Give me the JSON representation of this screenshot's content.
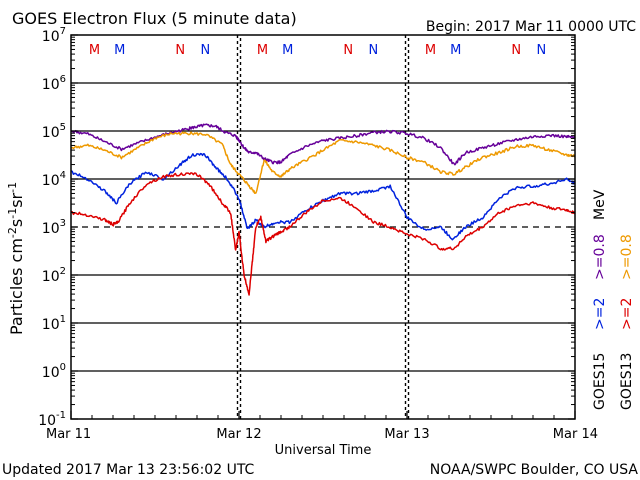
{
  "header": {
    "title": "GOES Electron Flux (5 minute data)",
    "begin": "Begin: 2017 Mar 11 0000 UTC"
  },
  "footer": {
    "updated": "Updated 2017 Mar 13 23:56:02 UTC",
    "credit": "NOAA/SWPC Boulder, CO USA"
  },
  "colors": {
    "red": "#dd0000",
    "blue": "#0022dd",
    "purple": "#660099",
    "orange": "#ee9900",
    "black": "#000000"
  },
  "chart_data": {
    "type": "line",
    "title": "GOES Electron Flux (5 minute data)",
    "xlabel": "Universal Time",
    "ylabel": "Particles cm^-2 s^-1 sr^-1",
    "xlim_days": [
      0,
      3
    ],
    "x_ticks": [
      {
        "day": 0,
        "label": "Mar 11"
      },
      {
        "day": 1,
        "label": "Mar 12"
      },
      {
        "day": 2,
        "label": "Mar 13"
      },
      {
        "day": 3,
        "label": "Mar 14"
      }
    ],
    "y_scale": "log",
    "ylim_log10": [
      -1,
      7
    ],
    "y_ticks": [
      {
        "exp": 7,
        "label": "10",
        "sup": "7"
      },
      {
        "exp": 6,
        "label": "10",
        "sup": "6"
      },
      {
        "exp": 5,
        "label": "10",
        "sup": "5"
      },
      {
        "exp": 4,
        "label": "10",
        "sup": "4"
      },
      {
        "exp": 3,
        "label": "10",
        "sup": "3"
      },
      {
        "exp": 2,
        "label": "10",
        "sup": "2"
      },
      {
        "exp": 1,
        "label": "10",
        "sup": "1"
      },
      {
        "exp": 0,
        "label": "10",
        "sup": "0"
      },
      {
        "exp": -1,
        "label": "10",
        "sup": "-1"
      }
    ],
    "grid_lines_log10": [
      6,
      5,
      4,
      2,
      1,
      0
    ],
    "threshold": {
      "log10": 3,
      "style": "dashed"
    },
    "markers": [
      {
        "day": 0.14,
        "label": "M",
        "color": "red"
      },
      {
        "day": 0.29,
        "label": "M",
        "color": "blue"
      },
      {
        "day": 0.65,
        "label": "N",
        "color": "red"
      },
      {
        "day": 0.8,
        "label": "N",
        "color": "blue"
      },
      {
        "day": 1.14,
        "label": "M",
        "color": "red"
      },
      {
        "day": 1.29,
        "label": "M",
        "color": "blue"
      },
      {
        "day": 1.65,
        "label": "N",
        "color": "red"
      },
      {
        "day": 1.8,
        "label": "N",
        "color": "blue"
      },
      {
        "day": 2.14,
        "label": "M",
        "color": "red"
      },
      {
        "day": 2.29,
        "label": "M",
        "color": "blue"
      },
      {
        "day": 2.65,
        "label": "N",
        "color": "red"
      },
      {
        "day": 2.8,
        "label": "N",
        "color": "blue"
      }
    ],
    "legend": {
      "placement": "right",
      "columns": [
        {
          "name": "GOES15",
          "entries": [
            {
              "label": ">=2",
              "unit": "",
              "color": "blue"
            },
            {
              "label": ">=0.8",
              "unit": "MeV",
              "color": "purple"
            }
          ]
        },
        {
          "name": "GOES13",
          "entries": [
            {
              "label": ">=2",
              "unit": "",
              "color": "red"
            },
            {
              "label": ">=0.8",
              "unit": "MeV",
              "color": "orange"
            }
          ]
        }
      ]
    },
    "series": [
      {
        "name": "GOES15 >=0.8 MeV",
        "color": "purple",
        "x": [
          0,
          0.1,
          0.2,
          0.3,
          0.4,
          0.5,
          0.6,
          0.7,
          0.75,
          0.8,
          0.86,
          0.92,
          0.98,
          1.0,
          1.03,
          1.06,
          1.1,
          1.15,
          1.2,
          1.25,
          1.3,
          1.4,
          1.5,
          1.6,
          1.7,
          1.8,
          1.9,
          2.0,
          2.1,
          2.2,
          2.28,
          2.35,
          2.45,
          2.55,
          2.65,
          2.75,
          2.85,
          2.95,
          3.0
        ],
        "y": [
          5.0,
          4.94,
          4.78,
          4.62,
          4.75,
          4.87,
          4.97,
          5.05,
          5.09,
          5.12,
          5.1,
          4.97,
          4.9,
          4.81,
          4.65,
          4.55,
          4.55,
          4.42,
          4.35,
          4.35,
          4.5,
          4.68,
          4.8,
          4.85,
          4.9,
          4.97,
          4.99,
          4.95,
          4.85,
          4.65,
          4.3,
          4.55,
          4.65,
          4.74,
          4.82,
          4.88,
          4.91,
          4.88,
          4.86
        ]
      },
      {
        "name": "GOES13 >=0.8 MeV",
        "color": "orange",
        "x": [
          0,
          0.1,
          0.2,
          0.3,
          0.4,
          0.5,
          0.6,
          0.7,
          0.8,
          0.9,
          0.95,
          1.0,
          1.05,
          1.1,
          1.15,
          1.2,
          1.25,
          1.3,
          1.4,
          1.5,
          1.6,
          1.7,
          1.8,
          1.9,
          2.0,
          2.1,
          2.2,
          2.28,
          2.35,
          2.45,
          2.55,
          2.65,
          2.75,
          2.85,
          2.95,
          3.0
        ],
        "y": [
          4.65,
          4.7,
          4.6,
          4.45,
          4.65,
          4.85,
          4.95,
          4.95,
          4.93,
          4.72,
          4.3,
          4.1,
          3.9,
          3.7,
          4.4,
          4.15,
          4.05,
          4.2,
          4.4,
          4.6,
          4.8,
          4.77,
          4.7,
          4.6,
          4.45,
          4.35,
          4.15,
          4.1,
          4.25,
          4.45,
          4.55,
          4.68,
          4.7,
          4.6,
          4.5,
          4.48
        ]
      },
      {
        "name": "GOES15 >=2 MeV",
        "color": "blue",
        "x": [
          0,
          0.1,
          0.2,
          0.27,
          0.35,
          0.45,
          0.55,
          0.65,
          0.72,
          0.8,
          0.86,
          0.93,
          1.0,
          1.05,
          1.1,
          1.15,
          1.22,
          1.3,
          1.4,
          1.5,
          1.6,
          1.7,
          1.8,
          1.9,
          2.0,
          2.1,
          2.2,
          2.27,
          2.35,
          2.45,
          2.55,
          2.65,
          2.75,
          2.85,
          2.95,
          3.0
        ],
        "y": [
          4.15,
          4.0,
          3.75,
          3.5,
          3.9,
          4.15,
          4.0,
          4.3,
          4.5,
          4.5,
          4.25,
          4.0,
          3.6,
          2.95,
          3.15,
          3.0,
          3.1,
          3.1,
          3.35,
          3.55,
          3.7,
          3.7,
          3.75,
          3.85,
          3.2,
          2.95,
          3.0,
          2.75,
          3.0,
          3.2,
          3.6,
          3.82,
          3.85,
          3.9,
          4.0,
          3.9
        ]
      },
      {
        "name": "GOES13 >=2 MeV",
        "color": "red",
        "x": [
          0,
          0.1,
          0.2,
          0.25,
          0.28,
          0.35,
          0.45,
          0.55,
          0.65,
          0.75,
          0.82,
          0.9,
          0.95,
          0.98,
          1.0,
          1.03,
          1.06,
          1.08,
          1.1,
          1.13,
          1.16,
          1.2,
          1.25,
          1.3,
          1.4,
          1.5,
          1.6,
          1.7,
          1.8,
          1.9,
          2.0,
          2.1,
          2.2,
          2.28,
          2.35,
          2.45,
          2.55,
          2.65,
          2.75,
          2.85,
          2.95,
          3.0
        ],
        "y": [
          3.3,
          3.25,
          3.15,
          3.05,
          3.1,
          3.5,
          3.9,
          4.05,
          4.1,
          4.1,
          3.9,
          3.5,
          3.3,
          2.5,
          2.9,
          2.0,
          1.6,
          2.3,
          3.0,
          3.2,
          2.7,
          2.8,
          2.9,
          3.0,
          3.3,
          3.55,
          3.6,
          3.4,
          3.1,
          3.0,
          2.85,
          2.75,
          2.55,
          2.55,
          2.8,
          3.0,
          3.3,
          3.45,
          3.5,
          3.4,
          3.35,
          3.3
        ]
      }
    ]
  }
}
